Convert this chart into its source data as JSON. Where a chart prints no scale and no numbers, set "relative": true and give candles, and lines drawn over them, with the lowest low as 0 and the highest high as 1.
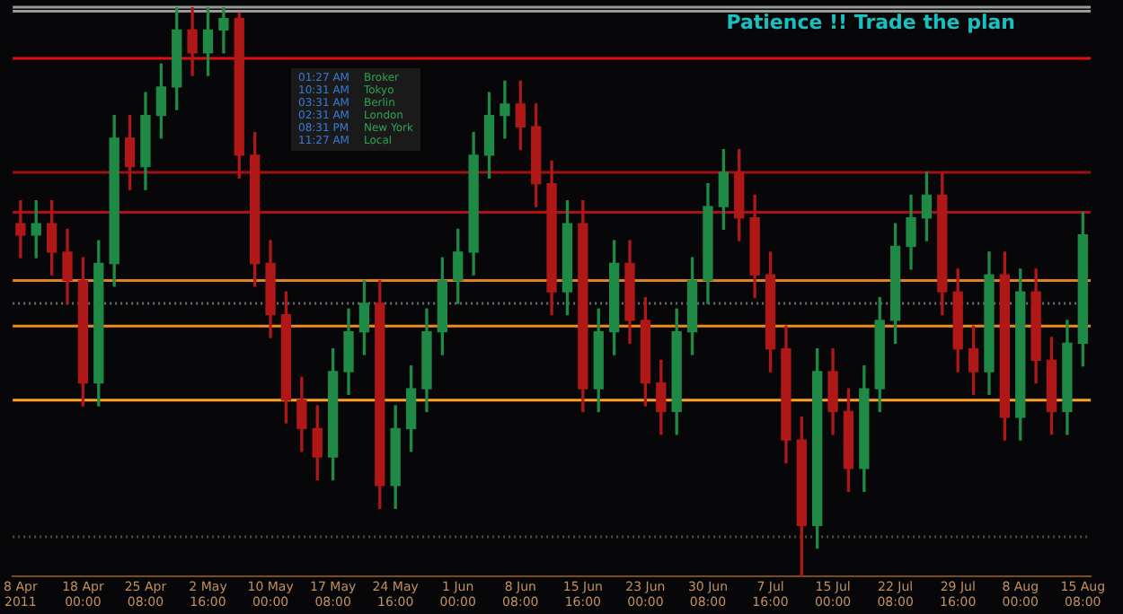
{
  "chart_data": {
    "type": "candlestick",
    "title": "Patience !! Trade the plan",
    "relative": true,
    "tick_labels": "x",
    "categories": [
      "8 Apr 2011",
      null,
      null,
      null,
      "18 Apr 00:00",
      null,
      null,
      null,
      "25 Apr 08:00",
      null,
      null,
      null,
      "2 May 16:00",
      null,
      null,
      null,
      "10 May 00:00",
      null,
      null,
      null,
      "17 May 08:00",
      null,
      null,
      null,
      "24 May 16:00",
      null,
      null,
      null,
      "1 Jun 00:00",
      null,
      null,
      null,
      "8 Jun 08:00",
      null,
      null,
      null,
      "15 Jun 16:00",
      null,
      null,
      null,
      "23 Jun 00:00",
      null,
      null,
      null,
      "30 Jun 08:00",
      null,
      null,
      null,
      "7 Jul 16:00",
      null,
      null,
      null,
      "15 Jul 00:00",
      null,
      null,
      null,
      "22 Jul 08:00",
      null,
      null,
      null,
      "29 Jul 16:00",
      null,
      null,
      null,
      "8 Aug 00:00",
      null,
      null,
      null,
      "15 Aug 08:00"
    ],
    "ohlc": [
      [
        0.62,
        0.66,
        0.56,
        0.6
      ],
      [
        0.6,
        0.66,
        0.56,
        0.62
      ],
      [
        0.62,
        0.66,
        0.53,
        0.57
      ],
      [
        0.57,
        0.61,
        0.48,
        0.52
      ],
      [
        0.52,
        0.56,
        0.3,
        0.34
      ],
      [
        0.34,
        0.59,
        0.3,
        0.55
      ],
      [
        0.55,
        0.81,
        0.51,
        0.77
      ],
      [
        0.77,
        0.81,
        0.68,
        0.72
      ],
      [
        0.72,
        0.85,
        0.68,
        0.81
      ],
      [
        0.81,
        0.9,
        0.77,
        0.86
      ],
      [
        0.86,
        1.0,
        0.82,
        0.96
      ],
      [
        0.96,
        1.0,
        0.88,
        0.92
      ],
      [
        0.92,
        1.0,
        0.88,
        0.96
      ],
      [
        0.96,
        1.0,
        0.92,
        0.98
      ],
      [
        0.98,
        0.99,
        0.7,
        0.74
      ],
      [
        0.74,
        0.78,
        0.51,
        0.55
      ],
      [
        0.55,
        0.59,
        0.42,
        0.46
      ],
      [
        0.46,
        0.5,
        0.27,
        0.31
      ],
      [
        0.31,
        0.35,
        0.22,
        0.26
      ],
      [
        0.26,
        0.3,
        0.17,
        0.21
      ],
      [
        0.21,
        0.4,
        0.17,
        0.36
      ],
      [
        0.36,
        0.47,
        0.32,
        0.43
      ],
      [
        0.43,
        0.52,
        0.39,
        0.48
      ],
      [
        0.48,
        0.52,
        0.12,
        0.16
      ],
      [
        0.16,
        0.3,
        0.12,
        0.26
      ],
      [
        0.26,
        0.37,
        0.22,
        0.33
      ],
      [
        0.33,
        0.47,
        0.29,
        0.43
      ],
      [
        0.43,
        0.56,
        0.39,
        0.52
      ],
      [
        0.52,
        0.61,
        0.48,
        0.57
      ],
      [
        0.57,
        0.78,
        0.53,
        0.74
      ],
      [
        0.74,
        0.85,
        0.7,
        0.81
      ],
      [
        0.81,
        0.87,
        0.77,
        0.83
      ],
      [
        0.83,
        0.87,
        0.75,
        0.79
      ],
      [
        0.79,
        0.83,
        0.65,
        0.69
      ],
      [
        0.69,
        0.73,
        0.46,
        0.5
      ],
      [
        0.5,
        0.66,
        0.46,
        0.62
      ],
      [
        0.62,
        0.66,
        0.29,
        0.33
      ],
      [
        0.33,
        0.47,
        0.29,
        0.43
      ],
      [
        0.43,
        0.59,
        0.39,
        0.55
      ],
      [
        0.55,
        0.59,
        0.41,
        0.45
      ],
      [
        0.45,
        0.49,
        0.3,
        0.34
      ],
      [
        0.34,
        0.38,
        0.25,
        0.29
      ],
      [
        0.29,
        0.47,
        0.25,
        0.43
      ],
      [
        0.43,
        0.56,
        0.39,
        0.52
      ],
      [
        0.52,
        0.69,
        0.48,
        0.65
      ],
      [
        0.65,
        0.75,
        0.61,
        0.71
      ],
      [
        0.71,
        0.75,
        0.59,
        0.63
      ],
      [
        0.63,
        0.67,
        0.49,
        0.53
      ],
      [
        0.53,
        0.57,
        0.36,
        0.4
      ],
      [
        0.4,
        0.44,
        0.2,
        0.24
      ],
      [
        0.24,
        0.28,
        0.0,
        0.09
      ],
      [
        0.09,
        0.4,
        0.05,
        0.36
      ],
      [
        0.36,
        0.4,
        0.25,
        0.29
      ],
      [
        0.29,
        0.33,
        0.15,
        0.19
      ],
      [
        0.19,
        0.37,
        0.15,
        0.33
      ],
      [
        0.33,
        0.49,
        0.29,
        0.45
      ],
      [
        0.45,
        0.62,
        0.41,
        0.58
      ],
      [
        0.58,
        0.67,
        0.54,
        0.63
      ],
      [
        0.63,
        0.71,
        0.59,
        0.67
      ],
      [
        0.67,
        0.71,
        0.46,
        0.5
      ],
      [
        0.5,
        0.54,
        0.36,
        0.4
      ],
      [
        0.4,
        0.44,
        0.32,
        0.36
      ],
      [
        0.36,
        0.57,
        0.32,
        0.53
      ],
      [
        0.53,
        0.57,
        0.24,
        0.28
      ],
      [
        0.28,
        0.54,
        0.24,
        0.5
      ],
      [
        0.5,
        0.54,
        0.34,
        0.38
      ],
      [
        0.38,
        0.42,
        0.25,
        0.29
      ],
      [
        0.29,
        0.45,
        0.25,
        0.41
      ],
      [
        0.41,
        0.64,
        0.37,
        0.6
      ]
    ],
    "colors": [
      "#b01818",
      "#1f8a46",
      "#b01818",
      "#b01818",
      "#b01818",
      "#1f8a46",
      "#1f8a46",
      "#b01818",
      "#1f8a46",
      "#1f8a46",
      "#1f8a46",
      "#b01818",
      "#1f8a46",
      "#1f8a46",
      "#b01818",
      "#b01818",
      "#b01818",
      "#b01818",
      "#b01818",
      "#b01818",
      "#1f8a46",
      "#1f8a46",
      "#1f8a46",
      "#b01818",
      "#1f8a46",
      "#1f8a46",
      "#1f8a46",
      "#1f8a46",
      "#1f8a46",
      "#1f8a46",
      "#1f8a46",
      "#1f8a46",
      "#b01818",
      "#b01818",
      "#b01818",
      "#1f8a46",
      "#b01818",
      "#1f8a46",
      "#1f8a46",
      "#b01818",
      "#b01818",
      "#b01818",
      "#1f8a46",
      "#1f8a46",
      "#1f8a46",
      "#1f8a46",
      "#b01818",
      "#b01818",
      "#b01818",
      "#b01818",
      "#b01818",
      "#1f8a46",
      "#b01818",
      "#b01818",
      "#1f8a46",
      "#1f8a46",
      "#1f8a46",
      "#1f8a46",
      "#1f8a46",
      "#b01818",
      "#b01818",
      "#b01818",
      "#1f8a46",
      "#b01818",
      "#1f8a46",
      "#b01818",
      "#b01818",
      "#1f8a46",
      "#1f8a46"
    ],
    "ref_lines": [
      {
        "axis": "y",
        "value": 0.993,
        "color": "#9a9a9a"
      },
      {
        "axis": "y",
        "value": 1.0,
        "color": "#9a9a9a"
      },
      {
        "axis": "y",
        "value": 0.91,
        "color": "#e01010"
      },
      {
        "axis": "y",
        "value": 0.71,
        "color": "#a01010"
      },
      {
        "axis": "y",
        "value": 0.64,
        "color": "#b01010"
      },
      {
        "axis": "y",
        "value": 0.52,
        "color": "#e08020"
      },
      {
        "axis": "y",
        "value": 0.48,
        "color": "#6a6a6a",
        "line_style": "dotted"
      },
      {
        "axis": "y",
        "value": 0.44,
        "color": "#f08a20"
      },
      {
        "axis": "y",
        "value": 0.31,
        "color": "#ffa020"
      },
      {
        "axis": "y",
        "value": 0.07,
        "color": "#5a4a30",
        "line_style": "dotted"
      }
    ],
    "annotations": [
      "01:27 AM",
      "Broker",
      "10:31 AM",
      "Tokyo",
      "03:31 AM",
      "Berlin",
      "02:31 AM",
      "London",
      "08:31 PM",
      "New York",
      "11:27 AM",
      "Local"
    ]
  }
}
